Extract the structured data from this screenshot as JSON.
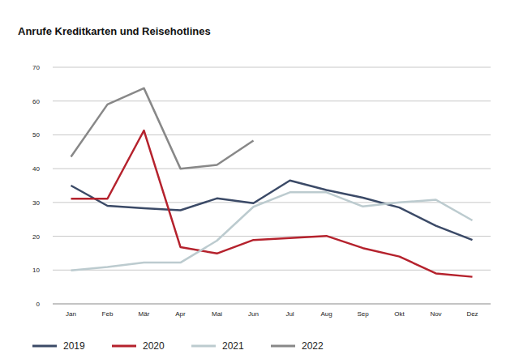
{
  "chart_data": {
    "type": "line",
    "title": "Anrufe Kreditkarten und Reisehotlines",
    "categories": [
      "Jan",
      "Feb",
      "Mär",
      "Apr",
      "Mai",
      "Jun",
      "Jul",
      "Aug",
      "Sep",
      "Okt",
      "Nov",
      "Dez"
    ],
    "series": [
      {
        "name": "2019",
        "color": "#3b4a67",
        "values": [
          35,
          29,
          28.3,
          27.7,
          31.2,
          29.8,
          36.5,
          33.7,
          31.4,
          28.5,
          23.1,
          18.9
        ]
      },
      {
        "name": "2020",
        "color": "#b5222d",
        "values": [
          31.1,
          31.1,
          51.3,
          16.8,
          14.9,
          18.9,
          19.5,
          20.1,
          16.5,
          14,
          9,
          8
        ]
      },
      {
        "name": "2021",
        "color": "#bccbcf",
        "values": [
          9.9,
          10.9,
          12.2,
          12.2,
          18.7,
          28.7,
          33,
          33,
          28.8,
          30,
          30.8,
          24.7
        ]
      },
      {
        "name": "2022",
        "color": "#888888",
        "values": [
          43.5,
          59,
          63.8,
          40,
          41.1,
          48.3,
          null,
          null,
          null,
          null,
          null,
          null
        ]
      }
    ],
    "ylim": [
      0,
      70
    ],
    "yticks": [
      0,
      10,
      20,
      30,
      40,
      50,
      60,
      70
    ],
    "grid": true,
    "legend": "bottom"
  }
}
